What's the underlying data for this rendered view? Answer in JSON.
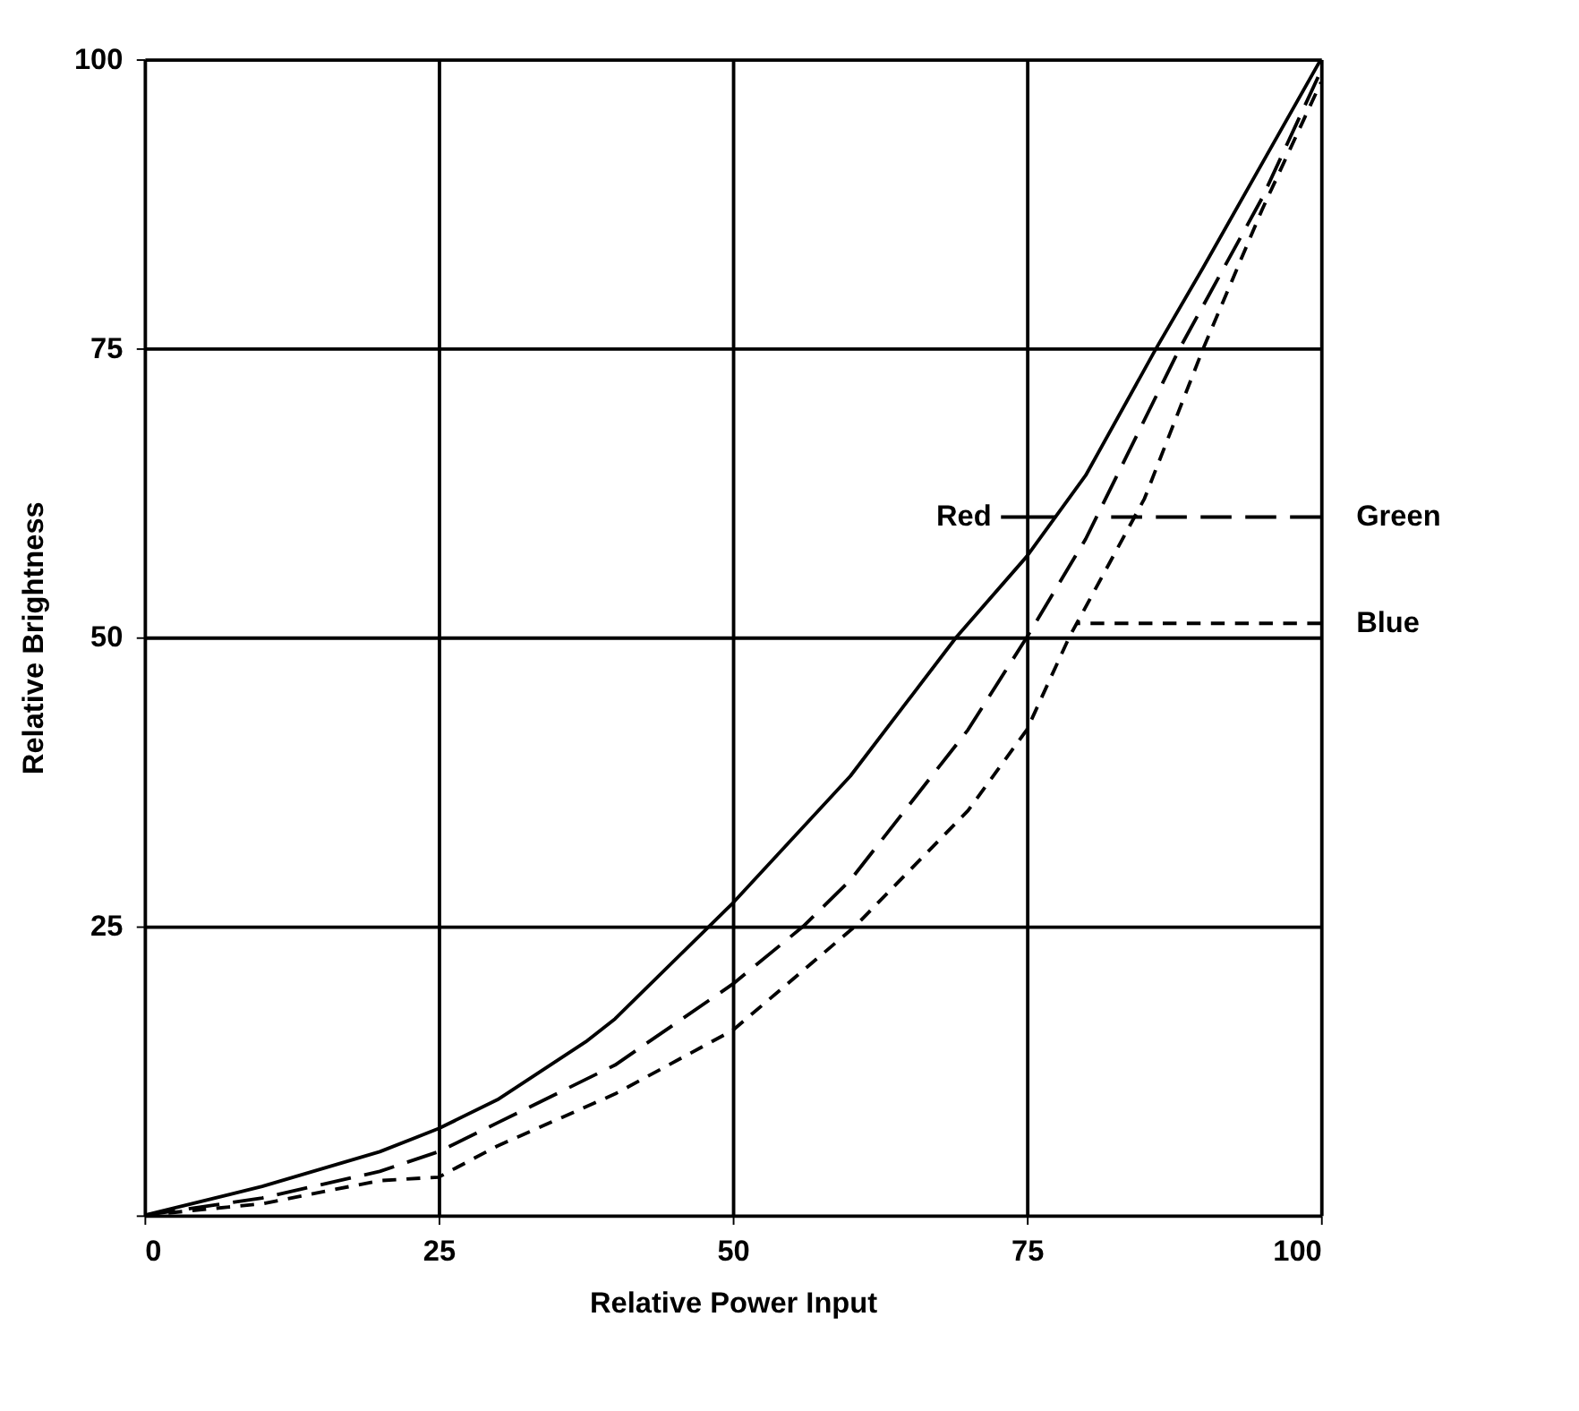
{
  "chart_data": {
    "type": "line",
    "xlabel": "Relative Power Input",
    "ylabel": "Relative Brightness",
    "xlim": [
      0,
      100
    ],
    "ylim": [
      0,
      100
    ],
    "xticks": [
      0,
      25,
      50,
      75,
      100
    ],
    "yticks": [
      {
        "value": 0,
        "label": null
      },
      25,
      50,
      75,
      100
    ],
    "grid": true,
    "marker": "none",
    "annotations": [
      {
        "text": "Red",
        "x": 77.4,
        "y": 60.4
      },
      {
        "text": "Green",
        "x": 81,
        "y": 60.4
      },
      {
        "text": "Blue",
        "x": 79.2,
        "y": 51.2
      }
    ],
    "series": [
      {
        "color": "#000000",
        "line_style": "solid",
        "x": [
          0,
          10,
          20,
          25,
          30,
          37.5,
          40,
          48,
          50,
          60,
          69,
          75,
          80,
          86,
          90,
          95,
          100
        ],
        "values": [
          0,
          2.5,
          5.5,
          7.5,
          10,
          15,
          17,
          25,
          27,
          38,
          50,
          57,
          64,
          75,
          82,
          91,
          100
        ]
      },
      {
        "color": "#000000",
        "line_style": "dashed",
        "x": [
          0,
          10,
          20,
          25,
          30,
          40,
          50,
          56,
          60,
          70,
          75,
          80,
          88,
          95,
          100
        ],
        "values": [
          0,
          1.5,
          3.8,
          5.5,
          8,
          13,
          20,
          25,
          29,
          42,
          50,
          58.5,
          75,
          88,
          99
        ]
      },
      {
        "color": "#000000",
        "line_style": "dotted",
        "x": [
          0,
          10,
          20,
          25,
          30,
          40,
          50,
          60.4,
          70,
          75,
          78.6,
          85,
          90,
          95,
          100
        ],
        "values": [
          0,
          1,
          3,
          3.3,
          6,
          10.5,
          16,
          25,
          35,
          42,
          50,
          62,
          75,
          87,
          98
        ]
      }
    ]
  }
}
